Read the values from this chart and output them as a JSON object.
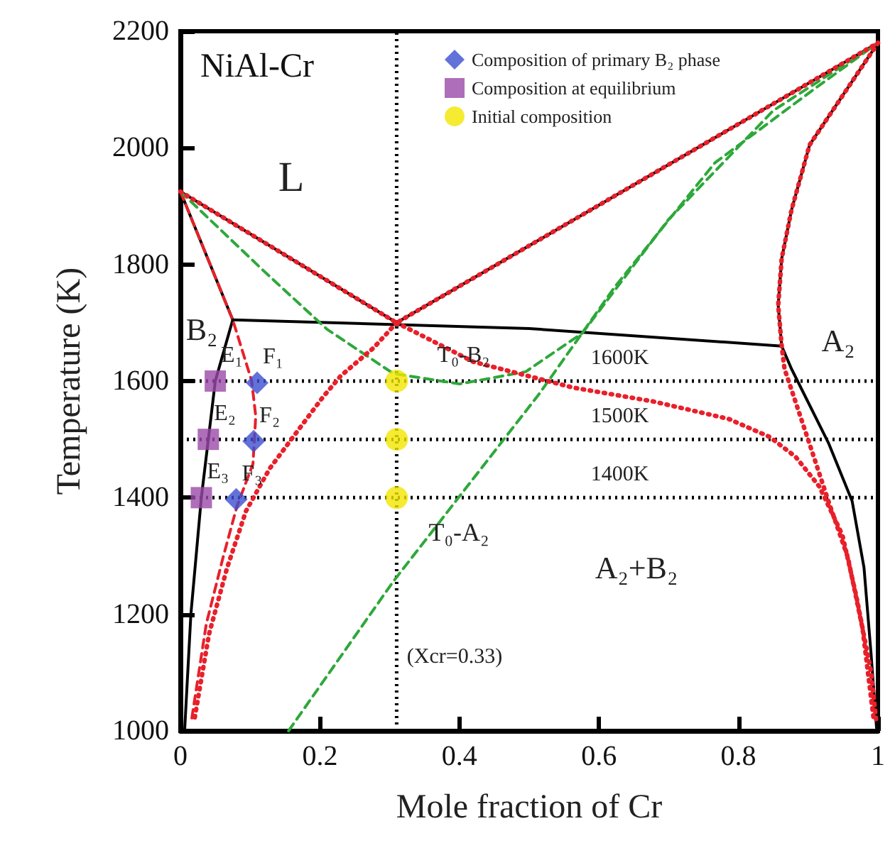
{
  "chart_data": {
    "type": "line",
    "title": "NiAl-Cr",
    "xlabel": "Mole fraction of Cr",
    "ylabel": "Temperature (K)",
    "xlim": [
      0,
      1
    ],
    "xticks": [
      0,
      0.2,
      0.4,
      0.6,
      0.8,
      1.0
    ],
    "ylim": [
      1000,
      2200
    ],
    "yticks": [
      1000,
      1200,
      1400,
      1600,
      1800,
      2000,
      2200
    ],
    "grid": false,
    "legend": "top right",
    "series": [
      {
        "color": "#000000",
        "line_style": "solid",
        "marker": "none",
        "x": [
          0,
          0.31,
          1
        ],
        "values": [
          1925,
          1700,
          2180
        ]
      },
      {
        "color": "#e8202a",
        "line_style": "dotted",
        "marker": "none",
        "x": [
          0,
          0.31,
          1
        ],
        "values": [
          1925,
          1700,
          2180
        ]
      },
      {
        "color": "#000000",
        "line_style": "solid",
        "marker": "none",
        "x": [
          0,
          0.075,
          0.05,
          0.04,
          0.03,
          0.015,
          0.006
        ],
        "values": [
          1925,
          1705,
          1600,
          1500,
          1400,
          1200,
          1000
        ]
      },
      {
        "color": "#000000",
        "line_style": "solid",
        "marker": "none",
        "x": [
          0.075,
          0.5,
          0.862
        ],
        "values": [
          1705,
          1690,
          1660
        ]
      },
      {
        "color": "#000000",
        "line_style": "solid",
        "marker": "none",
        "x": [
          1,
          0.902,
          0.876,
          0.862,
          0.857,
          0.862,
          0.876,
          0.929,
          0.963,
          0.98,
          0.99,
          0.998
        ],
        "values": [
          2180,
          2005,
          1893,
          1810,
          1730,
          1660,
          1621,
          1494,
          1394,
          1280,
          1134,
          1005
        ]
      },
      {
        "color": "#e8202a",
        "line_style": "dashed",
        "marker": "none",
        "x": [
          0,
          0.075,
          0.102,
          0.108,
          0.104,
          0.081,
          0.061,
          0.037,
          0.016
        ],
        "values": [
          1925,
          1705,
          1601,
          1540,
          1458,
          1385,
          1297,
          1183,
          1019
        ]
      },
      {
        "color": "#e8202a",
        "line_style": "dotted",
        "marker": "none",
        "x": [
          0.31,
          0.277,
          0.23,
          0.204,
          0.169,
          0.128,
          0.094,
          0.067,
          0.041,
          0.02
        ],
        "values": [
          1700,
          1657,
          1609,
          1572,
          1516,
          1450,
          1377,
          1280,
          1166,
          1019
        ]
      },
      {
        "color": "#e8202a",
        "line_style": "dotted",
        "marker": "none",
        "x": [
          0.31,
          0.42,
          0.562,
          0.678,
          0.786,
          0.845,
          0.882,
          0.916,
          0.949,
          0.969,
          0.99,
          0.998
        ],
        "values": [
          1700,
          1633,
          1589,
          1565,
          1535,
          1504,
          1470,
          1419,
          1336,
          1231,
          1102,
          1012
        ]
      },
      {
        "color": "#e8202a",
        "line_style": "dotted",
        "marker": "none",
        "x": [
          1,
          0.902,
          0.876,
          0.862,
          0.857,
          0.862,
          0.866,
          0.902,
          0.929,
          0.957,
          0.978,
          0.994
        ],
        "values": [
          2180,
          2005,
          1893,
          1810,
          1730,
          1660,
          1621,
          1492,
          1394,
          1297,
          1175,
          1019
        ]
      },
      {
        "color": "#2ea83a",
        "line_style": "dashed",
        "marker": "none",
        "x": [
          0,
          0.122,
          0.21,
          0.305,
          0.4,
          0.495,
          0.576,
          0.699,
          0.85,
          1
        ],
        "values": [
          1925,
          1786,
          1689,
          1613,
          1595,
          1616,
          1682,
          1876,
          2064,
          2180
        ]
      },
      {
        "color": "#2ea83a",
        "line_style": "dashed",
        "marker": "none",
        "x": [
          0.155,
          0.305,
          0.515,
          0.623,
          0.766,
          0.902,
          1
        ],
        "values": [
          1000,
          1256,
          1579,
          1762,
          1974,
          2095,
          2180
        ]
      },
      {
        "type": "scatter",
        "name": "Composition of primary B₂ phase",
        "color": "#3c4fd0",
        "marker": "diamond",
        "x": [
          0.11,
          0.105,
          0.08
        ],
        "values": [
          1597,
          1497,
          1397
        ]
      },
      {
        "type": "scatter",
        "name": "Composition at equilibrium",
        "color": "#9b4aa8",
        "marker": "square",
        "x": [
          0.05,
          0.04,
          0.03
        ],
        "values": [
          1600,
          1500,
          1400
        ]
      },
      {
        "type": "scatter",
        "name": "Initial composition",
        "color": "#f2e600",
        "marker": "circle",
        "x": [
          0.31,
          0.31,
          0.31
        ],
        "values": [
          1600,
          1500,
          1400
        ]
      }
    ],
    "ref_lines": [
      {
        "axis": "y",
        "value": 1600,
        "label": "1600K",
        "color": "#000000",
        "line_style": "dotted"
      },
      {
        "axis": "y",
        "value": 1500,
        "label": "1500K",
        "color": "#000000",
        "line_style": "dotted"
      },
      {
        "axis": "y",
        "value": 1400,
        "label": "1400K",
        "color": "#000000",
        "line_style": "dotted"
      },
      {
        "axis": "x",
        "value": 0.31,
        "color": "#000000",
        "line_style": "dotted"
      }
    ],
    "annotations": [
      "L",
      "B₂",
      "A₂",
      "A₂+B₂",
      "T₀-A₂",
      "(Xcr=0.33)",
      {
        "text": "T₀-B₂",
        "x": 0.36,
        "y": 1600
      },
      {
        "text": "E₁",
        "x": 0.05,
        "y": 1600
      },
      {
        "text": "F₁",
        "x": 0.11,
        "y": 1597
      },
      {
        "text": "E₂",
        "x": 0.04,
        "y": 1500
      },
      {
        "text": "F₂",
        "x": 0.105,
        "y": 1497
      },
      {
        "text": "E₃",
        "x": 0.03,
        "y": 1400
      },
      {
        "text": "F₃",
        "x": 0.08,
        "y": 1397
      }
    ]
  }
}
